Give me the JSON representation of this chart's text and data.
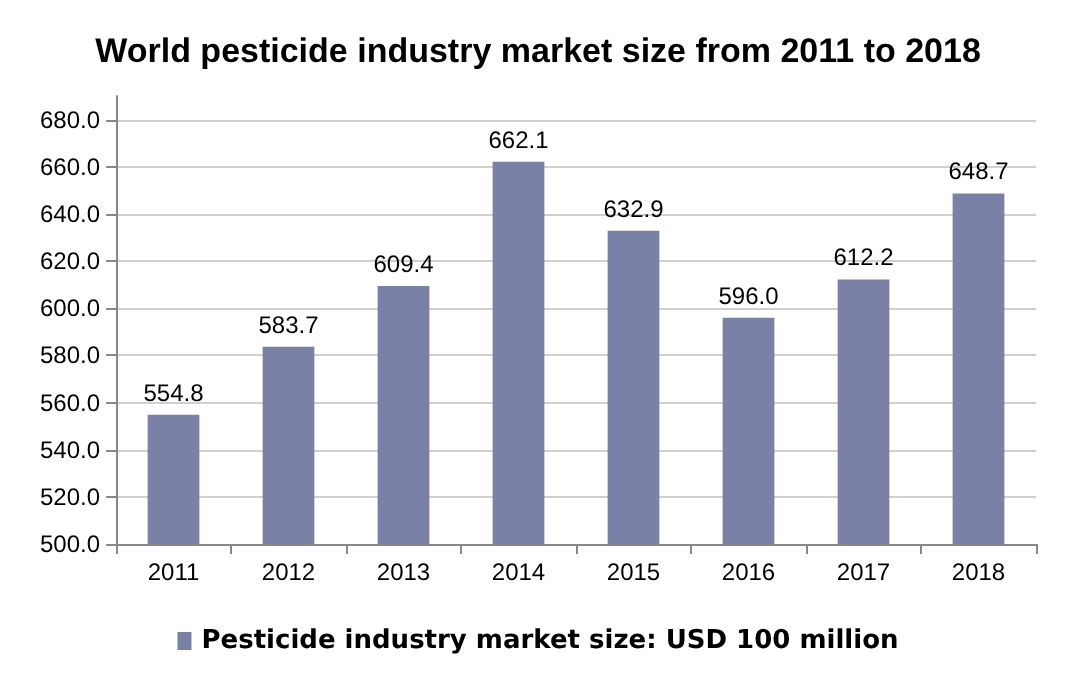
{
  "chart_data": {
    "type": "bar",
    "title": "World pesticide industry market size from 2011 to 2018",
    "categories": [
      "2011",
      "2012",
      "2013",
      "2014",
      "2015",
      "2016",
      "2017",
      "2018"
    ],
    "series": [
      {
        "name": "Pesticide industry market size: USD 100 million",
        "color": "#7b80a6",
        "values": [
          554.8,
          583.7,
          609.4,
          662.1,
          632.9,
          596.0,
          612.2,
          648.7
        ],
        "value_labels": [
          "554.8",
          "583.7",
          "609.4",
          "662.1",
          "632.9",
          "596.0",
          "612.2",
          "648.7"
        ]
      }
    ],
    "ylim": [
      500,
      690
    ],
    "yticks": [
      {
        "value": 500,
        "label": "500.0"
      },
      {
        "value": 520,
        "label": "520.0"
      },
      {
        "value": 540,
        "label": "540.0"
      },
      {
        "value": 560,
        "label": "560.0"
      },
      {
        "value": 580,
        "label": "580.0"
      },
      {
        "value": 600,
        "label": "600.0"
      },
      {
        "value": 620,
        "label": "620.0"
      },
      {
        "value": 640,
        "label": "640.0"
      },
      {
        "value": 660,
        "label": "660.0"
      },
      {
        "value": 680,
        "label": "680.0"
      }
    ],
    "grid": "y",
    "legend": "bottom"
  }
}
